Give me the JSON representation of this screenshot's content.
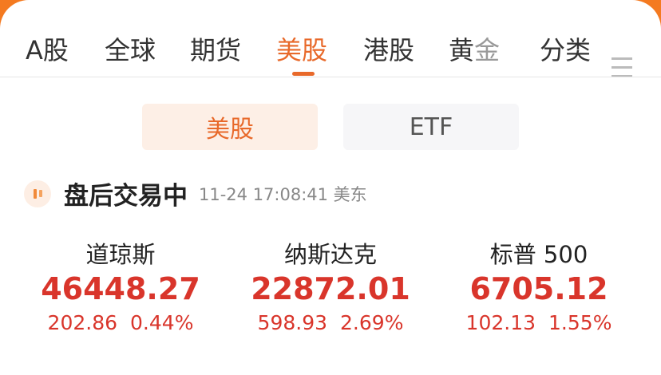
{
  "tabs": [
    {
      "label": "A股"
    },
    {
      "label": "全球"
    },
    {
      "label": "期货"
    },
    {
      "label": "美股"
    },
    {
      "label": "港股"
    },
    {
      "label_a": "黄",
      "label_b": "金"
    },
    {
      "label": "分类"
    }
  ],
  "active_tab": "美股",
  "segments": {
    "us": "美股",
    "etf": "ETF",
    "active": "美股"
  },
  "status": {
    "text": "盘后交易中",
    "time": "11-24 17:08:41 美东"
  },
  "indices": [
    {
      "name": "道琼斯",
      "value": "46448.27",
      "change": "202.86",
      "pct": "0.44%"
    },
    {
      "name": "纳斯达克",
      "value": "22872.01",
      "change": "598.93",
      "pct": "2.69%"
    },
    {
      "name": "标普 500",
      "value": "6705.12",
      "change": "102.13",
      "pct": "1.55%"
    }
  ],
  "colors": {
    "accent": "#e8692a",
    "up": "#d9352b"
  }
}
